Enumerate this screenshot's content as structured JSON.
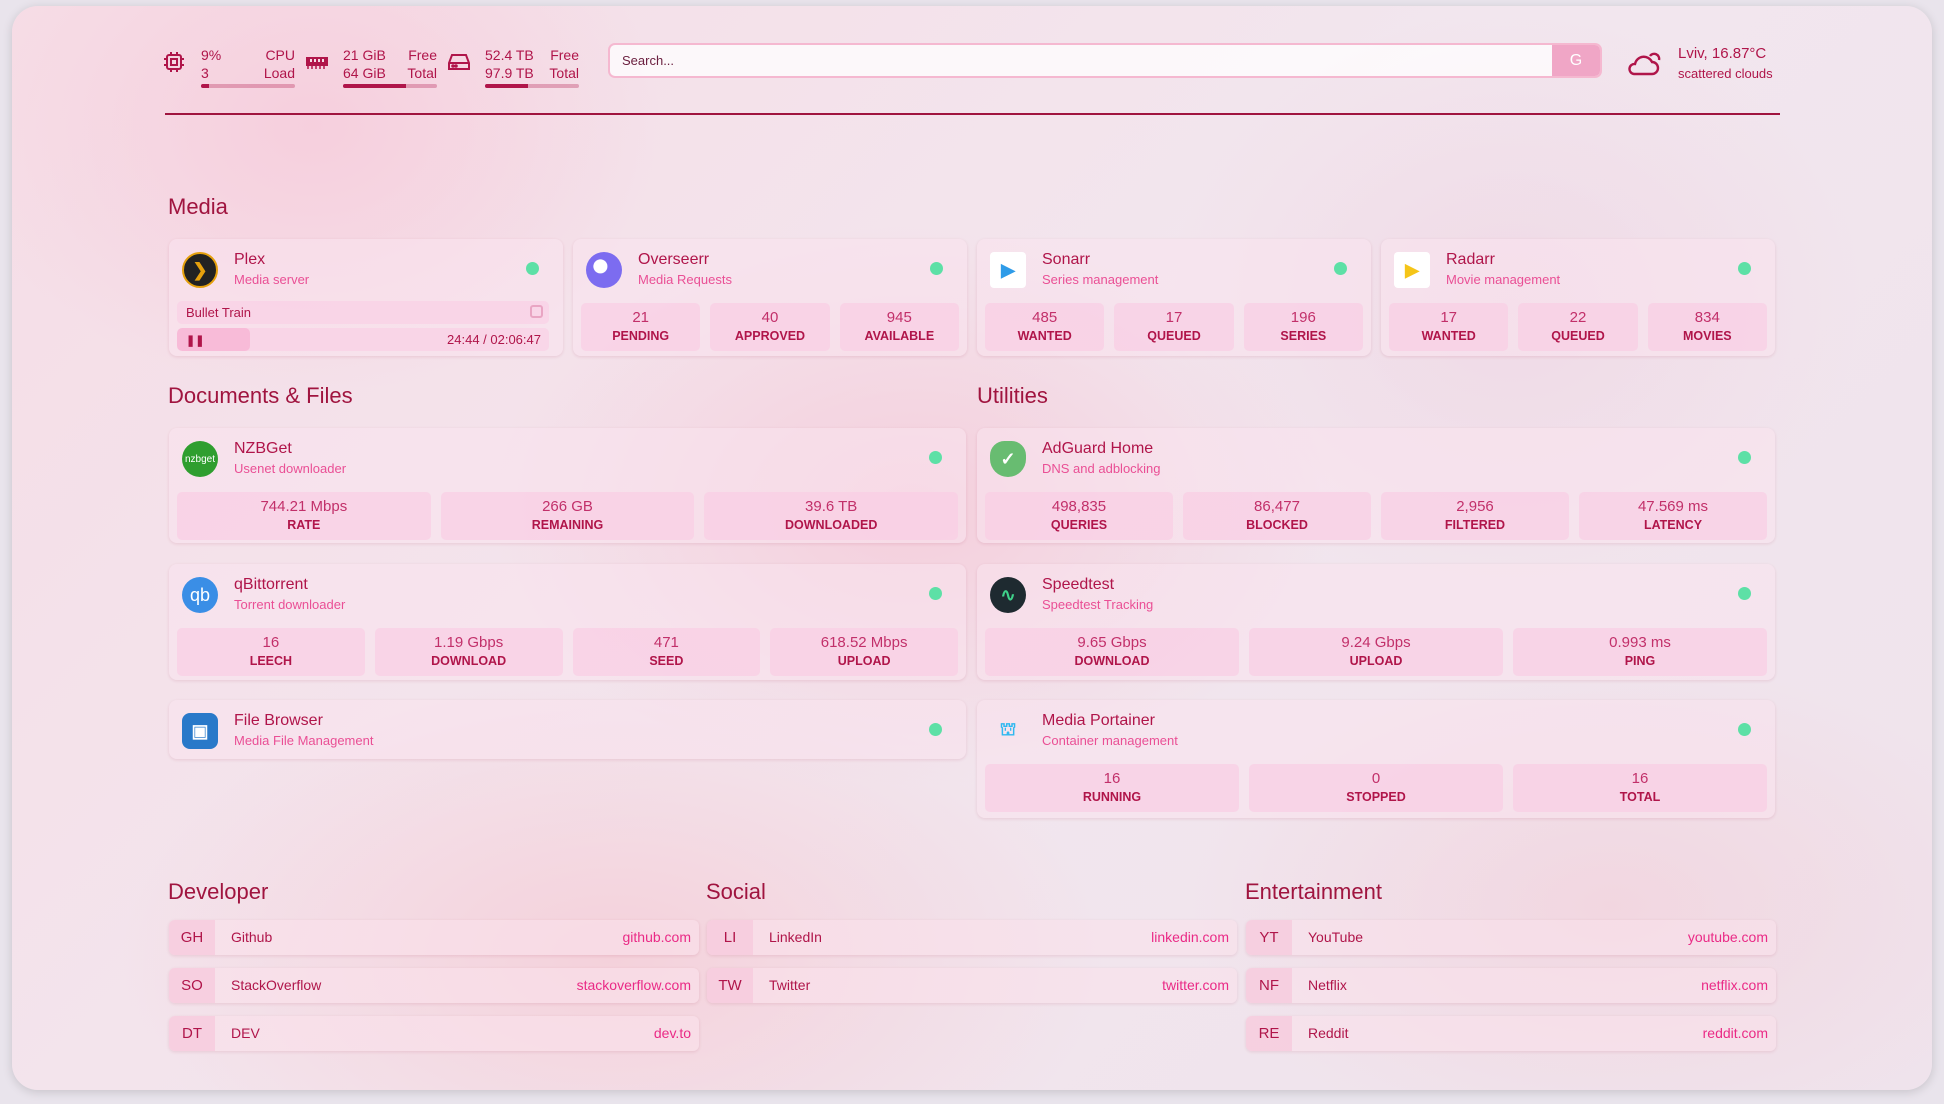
{
  "header": {
    "cpu": {
      "value": "9%",
      "cores": "3",
      "label1": "CPU",
      "label2": "Load",
      "percent": 9
    },
    "memory": {
      "free": "21 GiB",
      "total": "64 GiB",
      "label1": "Free",
      "label2": "Total",
      "used_percent": 67
    },
    "disk": {
      "free": "52.4 TB",
      "total": "97.9 TB",
      "label1": "Free",
      "label2": "Total",
      "used_percent": 46
    },
    "search": {
      "placeholder": "Search...",
      "engine_button": "G"
    },
    "weather": {
      "location_temp": "Lviv, 16.87°C",
      "description": "scattered clouds",
      "icon": "cloud-moon-icon"
    }
  },
  "colors": {
    "primary": "#b0154a",
    "subtitle": "#ea4f95",
    "status_ok": "#5de0a6"
  },
  "sections": {
    "media": {
      "title": "Media",
      "cards": [
        {
          "name": "Plex",
          "subtitle": "Media server",
          "icon": "plex-icon",
          "now_playing": {
            "title": "Bullet Train",
            "time": "24:44 / 02:06:47",
            "progress": 19.5
          }
        },
        {
          "name": "Overseerr",
          "subtitle": "Media Requests",
          "icon": "overseerr-icon",
          "stats": [
            {
              "value": "21",
              "label": "PENDING"
            },
            {
              "value": "40",
              "label": "APPROVED"
            },
            {
              "value": "945",
              "label": "AVAILABLE"
            }
          ]
        },
        {
          "name": "Sonarr",
          "subtitle": "Series management",
          "icon": "sonarr-icon",
          "stats": [
            {
              "value": "485",
              "label": "WANTED"
            },
            {
              "value": "17",
              "label": "QUEUED"
            },
            {
              "value": "196",
              "label": "SERIES"
            }
          ]
        },
        {
          "name": "Radarr",
          "subtitle": "Movie management",
          "icon": "radarr-icon",
          "stats": [
            {
              "value": "17",
              "label": "WANTED"
            },
            {
              "value": "22",
              "label": "QUEUED"
            },
            {
              "value": "834",
              "label": "MOVIES"
            }
          ]
        }
      ]
    },
    "documents": {
      "title": "Documents & Files",
      "cards": [
        {
          "name": "NZBGet",
          "subtitle": "Usenet downloader",
          "icon": "nzbget-icon",
          "icon_text": "nzbget",
          "stats": [
            {
              "value": "744.21 Mbps",
              "label": "RATE"
            },
            {
              "value": "266 GB",
              "label": "REMAINING"
            },
            {
              "value": "39.6 TB",
              "label": "DOWNLOADED"
            }
          ]
        },
        {
          "name": "qBittorrent",
          "subtitle": "Torrent downloader",
          "icon": "qbittorrent-icon",
          "icon_text": "qb",
          "stats": [
            {
              "value": "16",
              "label": "LEECH"
            },
            {
              "value": "1.19 Gbps",
              "label": "DOWNLOAD"
            },
            {
              "value": "471",
              "label": "SEED"
            },
            {
              "value": "618.52 Mbps",
              "label": "UPLOAD"
            }
          ]
        },
        {
          "name": "File Browser",
          "subtitle": "Media File Management",
          "icon": "filebrowser-icon"
        }
      ]
    },
    "utilities": {
      "title": "Utilities",
      "cards": [
        {
          "name": "AdGuard Home",
          "subtitle": "DNS and adblocking",
          "icon": "adguard-shield-icon",
          "stats": [
            {
              "value": "498,835",
              "label": "QUERIES"
            },
            {
              "value": "86,477",
              "label": "BLOCKED"
            },
            {
              "value": "2,956",
              "label": "FILTERED"
            },
            {
              "value": "47.569 ms",
              "label": "LATENCY"
            }
          ]
        },
        {
          "name": "Speedtest",
          "subtitle": "Speedtest Tracking",
          "icon": "speedtest-icon",
          "stats": [
            {
              "value": "9.65 Gbps",
              "label": "DOWNLOAD"
            },
            {
              "value": "9.24 Gbps",
              "label": "UPLOAD"
            },
            {
              "value": "0.993 ms",
              "label": "PING"
            }
          ]
        },
        {
          "name": "Media Portainer",
          "subtitle": "Container management",
          "icon": "portainer-icon",
          "stats": [
            {
              "value": "16",
              "label": "RUNNING"
            },
            {
              "value": "0",
              "label": "STOPPED"
            },
            {
              "value": "16",
              "label": "TOTAL"
            }
          ]
        }
      ]
    }
  },
  "bookmarks": [
    {
      "title": "Developer",
      "items": [
        {
          "abbr": "GH",
          "name": "Github",
          "url": "github.com"
        },
        {
          "abbr": "SO",
          "name": "StackOverflow",
          "url": "stackoverflow.com"
        },
        {
          "abbr": "DT",
          "name": "DEV",
          "url": "dev.to"
        }
      ]
    },
    {
      "title": "Social",
      "items": [
        {
          "abbr": "LI",
          "name": "LinkedIn",
          "url": "linkedin.com"
        },
        {
          "abbr": "TW",
          "name": "Twitter",
          "url": "twitter.com"
        }
      ]
    },
    {
      "title": "Entertainment",
      "items": [
        {
          "abbr": "YT",
          "name": "YouTube",
          "url": "youtube.com"
        },
        {
          "abbr": "NF",
          "name": "Netflix",
          "url": "netflix.com"
        },
        {
          "abbr": "RE",
          "name": "Reddit",
          "url": "reddit.com"
        }
      ]
    }
  ]
}
